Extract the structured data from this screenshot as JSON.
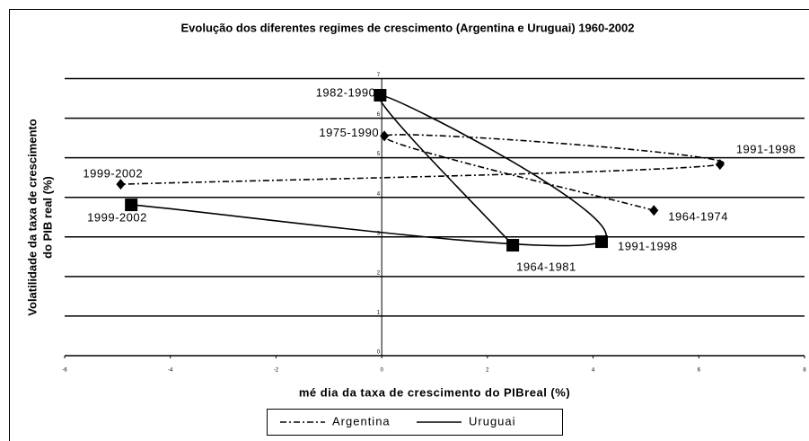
{
  "chart_data": {
    "type": "scatter",
    "title": "Evolução dos diferentes regimes de crescimento (Argentina e Uruguai) 1960-2002",
    "xlabel": "mé dia da taxa de crescimento do PIBreal (%)",
    "ylabel": [
      "Volatilidade da taxa de crescimento",
      "do PIB real (%)"
    ],
    "xlim": [
      -6,
      8
    ],
    "ylim": [
      0,
      7
    ],
    "xticks": [
      -6,
      -4,
      -2,
      0,
      2,
      4,
      6,
      8
    ],
    "yticks": [
      0,
      1,
      2,
      3,
      4,
      5,
      6,
      7
    ],
    "grid": true,
    "legend": "bottom",
    "series": [
      {
        "name": "Argentina",
        "color": "#000000",
        "marker": "diamond",
        "labels": [
          "1964-1974",
          "1975-1990",
          "1991-1998",
          "1999-2002"
        ],
        "x": [
          5.15,
          0.05,
          6.4,
          -4.94
        ],
        "values": [
          3.67,
          5.55,
          4.83,
          4.33
        ]
      },
      {
        "name": "Uruguai",
        "color": "#000000",
        "marker": "square",
        "labels": [
          "1964-1981",
          "1982-1990",
          "1991-1998",
          "1999-2002"
        ],
        "x": [
          2.48,
          -0.03,
          4.16,
          -4.74
        ],
        "values": [
          2.79,
          6.58,
          2.88,
          3.81
        ]
      }
    ]
  }
}
